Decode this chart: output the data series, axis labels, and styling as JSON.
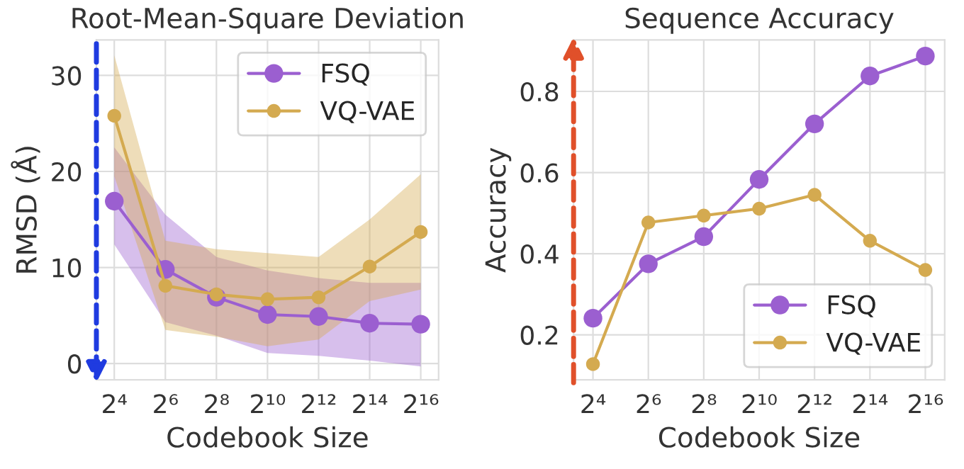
{
  "chart_data": [
    {
      "type": "line",
      "title": "Root-Mean-Square Deviation",
      "xlabel": "Codebook Size",
      "ylabel": "RMSD (Å)",
      "categories": [
        "2⁴",
        "2⁶",
        "2⁸",
        "2¹⁰",
        "2¹²",
        "2¹⁴",
        "2¹⁶"
      ],
      "series": [
        {
          "name": "FSQ",
          "color": "#9b5fd0",
          "values": [
            16.9,
            9.8,
            6.9,
            5.1,
            4.9,
            4.2,
            4.1
          ],
          "lower": [
            12.4,
            4.3,
            2.9,
            1.1,
            0.8,
            0.3,
            -0.3
          ],
          "upper": [
            22.5,
            15.5,
            11.1,
            9.7,
            8.9,
            8.4,
            8.4
          ]
        },
        {
          "name": "VQ-VAE",
          "color": "#d4aa50",
          "values": [
            25.8,
            8.1,
            7.2,
            6.7,
            6.9,
            10.1,
            13.7
          ],
          "lower": [
            19.5,
            3.5,
            2.8,
            1.8,
            2.5,
            6.5,
            7.7
          ],
          "upper": [
            32.1,
            12.8,
            11.9,
            11.5,
            11.1,
            15.0,
            19.7
          ]
        }
      ],
      "ylim": [
        -1.7,
        33.7
      ],
      "yticks": [
        0,
        10,
        20,
        30
      ],
      "grid": true,
      "legend": "top right",
      "marker": "circle",
      "line_style": "solid"
    },
    {
      "type": "line",
      "title": "Sequence Accuracy",
      "xlabel": "Codebook Size",
      "ylabel": "Accuracy",
      "categories": [
        "2⁴",
        "2⁶",
        "2⁸",
        "2¹⁰",
        "2¹²",
        "2¹⁴",
        "2¹⁶"
      ],
      "series": [
        {
          "name": "FSQ",
          "color": "#9b5fd0",
          "values": [
            0.241,
            0.375,
            0.442,
            0.583,
            0.72,
            0.838,
            0.887
          ]
        },
        {
          "name": "VQ-VAE",
          "color": "#d4aa50",
          "values": [
            0.128,
            0.477,
            0.494,
            0.511,
            0.545,
            0.432,
            0.36
          ]
        }
      ],
      "ylim": [
        0.089,
        0.927
      ],
      "yticks": [
        0.2,
        0.4,
        0.6,
        0.8
      ],
      "grid": true,
      "legend": "bottom right",
      "marker": "circle",
      "line_style": "solid"
    }
  ]
}
